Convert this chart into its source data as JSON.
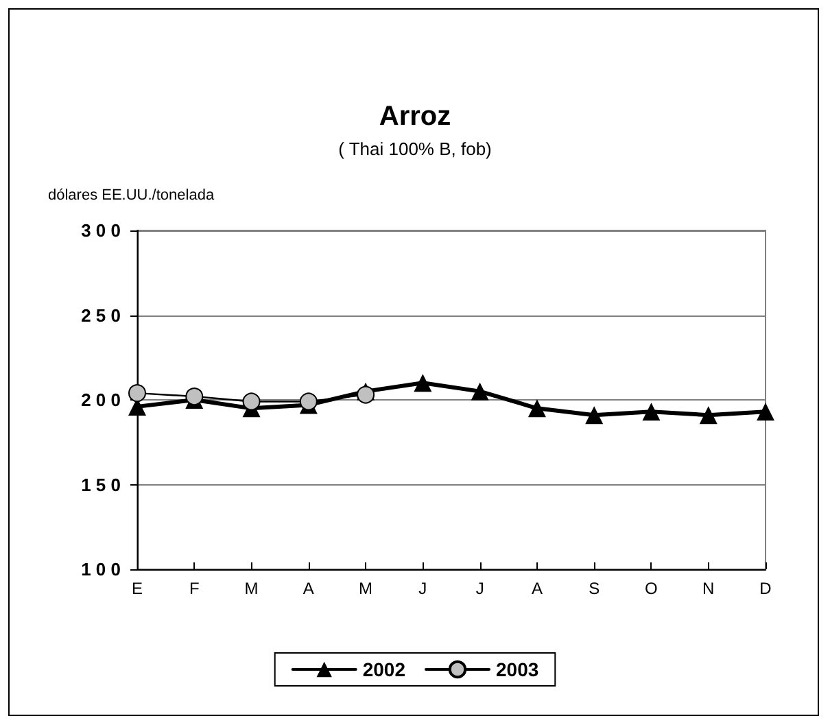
{
  "chart_data": {
    "type": "line",
    "title": "Arroz",
    "subtitle": "( Thai 100% B, fob)",
    "ylabel": "dólares EE.UU./tonelada",
    "categories": [
      "E",
      "F",
      "M",
      "A",
      "M",
      "J",
      "J",
      "A",
      "S",
      "O",
      "N",
      "D"
    ],
    "series": [
      {
        "name": "2002",
        "color": "#000000",
        "marker": "triangle",
        "values": [
          196,
          200,
          195,
          197,
          205,
          210,
          205,
          195,
          191,
          193,
          191,
          193
        ]
      },
      {
        "name": "2003",
        "color": "#c0c0c0",
        "marker": "circle",
        "values": [
          204,
          202,
          199,
          199,
          203,
          null,
          null,
          null,
          null,
          null,
          null,
          null
        ]
      }
    ],
    "ylim": [
      100,
      300
    ],
    "yticks": [
      100,
      150,
      200,
      250,
      300
    ],
    "grid": "y",
    "legend": "bottom"
  }
}
